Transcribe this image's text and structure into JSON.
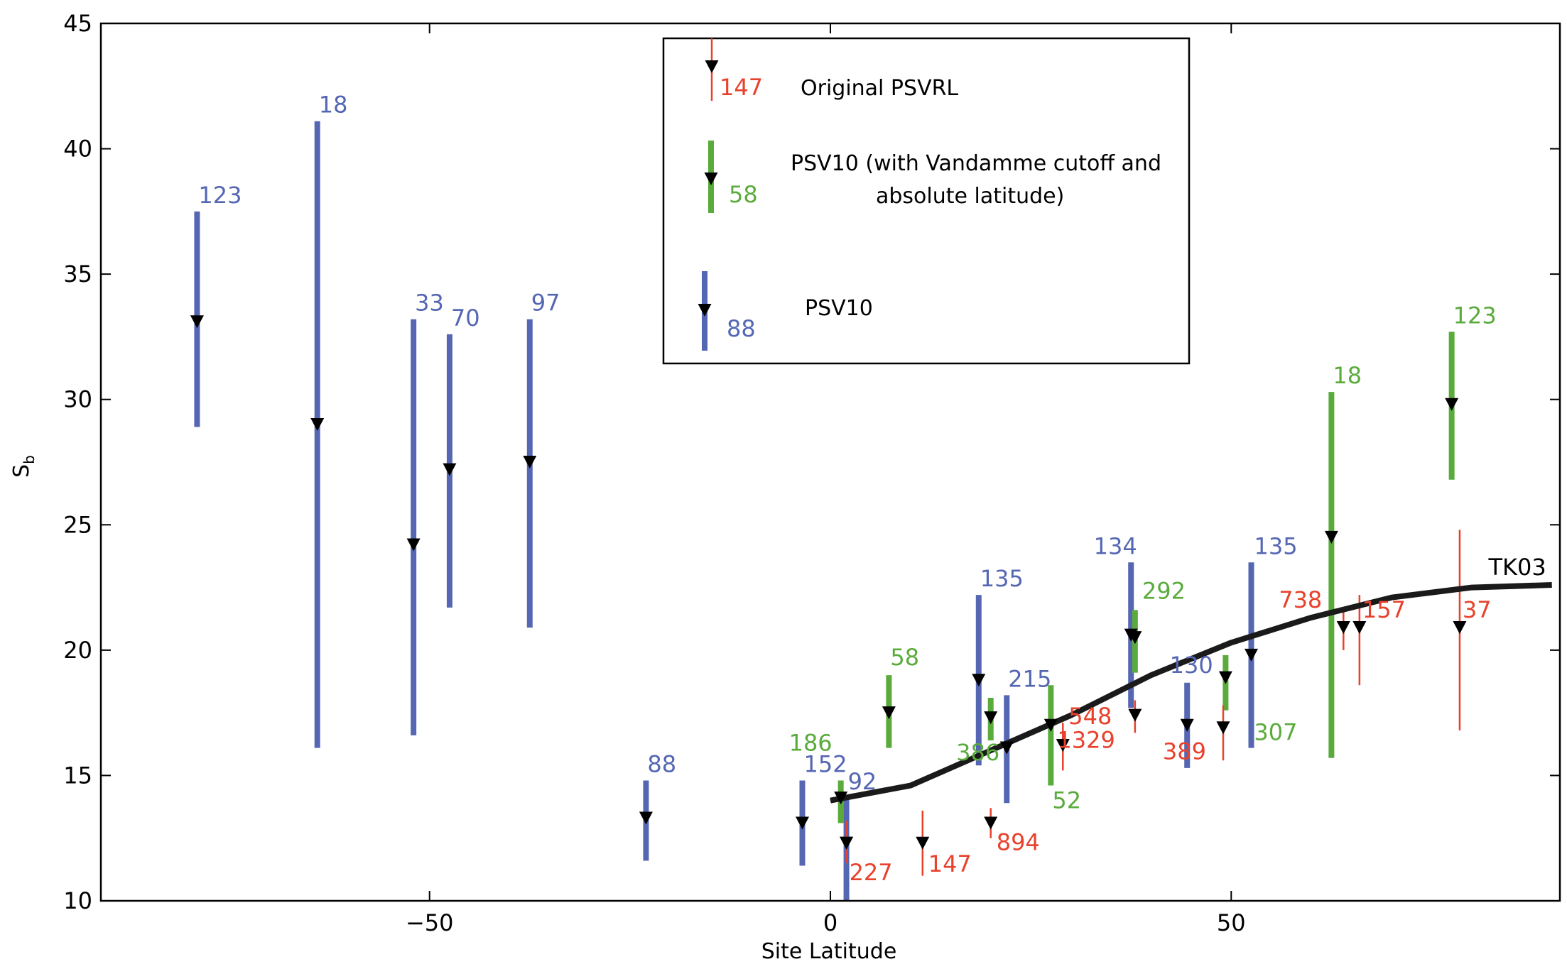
{
  "chart_data": {
    "type": "errorbar",
    "xlabel": "Site Latitude",
    "ylabel": "S",
    "ylabel_sub": "b",
    "xlim": [
      -91,
      91
    ],
    "ylim": [
      10,
      45
    ],
    "xticks": [
      -50,
      0,
      50
    ],
    "xtick_labels": [
      "−50",
      "0",
      "50"
    ],
    "yticks": [
      10,
      15,
      20,
      25,
      30,
      35,
      40,
      45
    ],
    "ytick_labels": [
      "10",
      "15",
      "20",
      "25",
      "30",
      "35",
      "40",
      "45"
    ],
    "grid": false,
    "legend_position": "top-center",
    "colors": {
      "original": "#e8412c",
      "vandamme": "#5aab3c",
      "psv10": "#5566b3",
      "marker": "#000000",
      "curve": "#1a1a1a"
    },
    "legend": [
      {
        "series": "original",
        "label": "Original PSVRL",
        "sample": "147"
      },
      {
        "series": "vandamme",
        "label_lines": [
          "PSV10 (with Vandamme cutoff and",
          "absolute latitude)"
        ],
        "sample": "58"
      },
      {
        "series": "psv10",
        "label": "PSV10",
        "sample": "88"
      }
    ],
    "series": [
      {
        "id": "psv10",
        "points": [
          {
            "x": -79,
            "y": 33.1,
            "low": 28.9,
            "high": 37.5,
            "n": "123"
          },
          {
            "x": -64,
            "y": 29.0,
            "low": 16.1,
            "high": 41.1,
            "n": "18"
          },
          {
            "x": -52,
            "y": 24.2,
            "low": 16.6,
            "high": 33.2,
            "n": "33"
          },
          {
            "x": -47.5,
            "y": 27.2,
            "low": 21.7,
            "high": 32.6,
            "n": "70"
          },
          {
            "x": -37.5,
            "y": 27.5,
            "low": 20.9,
            "high": 33.2,
            "n": "97"
          },
          {
            "x": -23,
            "y": 13.3,
            "low": 11.6,
            "high": 14.8,
            "n": "88"
          },
          {
            "x": -3.5,
            "y": 13.1,
            "low": 11.4,
            "high": 14.8,
            "n": "152"
          },
          {
            "x": 2,
            "y": 12.3,
            "low": 10.0,
            "high": 14.1,
            "n": "92"
          },
          {
            "x": 18.5,
            "y": 18.8,
            "low": 15.4,
            "high": 22.2,
            "n": "135"
          },
          {
            "x": 22,
            "y": 16.1,
            "low": 13.9,
            "high": 18.2,
            "n": "215"
          },
          {
            "x": 37.5,
            "y": 20.6,
            "low": 17.7,
            "high": 23.5,
            "n": "134"
          },
          {
            "x": 44.5,
            "y": 17.0,
            "low": 15.3,
            "high": 18.7,
            "n": "130"
          },
          {
            "x": 52.5,
            "y": 19.8,
            "low": 16.1,
            "high": 23.5,
            "n": "135"
          }
        ]
      },
      {
        "id": "vandamme",
        "points": [
          {
            "x": 1.3,
            "y": 14.1,
            "low": 13.1,
            "high": 14.8,
            "n": "186"
          },
          {
            "x": 7.3,
            "y": 17.5,
            "low": 16.1,
            "high": 19.0,
            "n": "58"
          },
          {
            "x": 20,
            "y": 17.3,
            "low": 16.4,
            "high": 18.1,
            "n": "386"
          },
          {
            "x": 27.5,
            "y": 17.0,
            "low": 14.6,
            "high": 18.6,
            "n": "52"
          },
          {
            "x": 38,
            "y": 20.5,
            "low": 19.1,
            "high": 21.6,
            "n": "292"
          },
          {
            "x": 49.3,
            "y": 18.9,
            "low": 17.6,
            "high": 19.8,
            "n": "307"
          },
          {
            "x": 62.5,
            "y": 24.5,
            "low": 15.7,
            "high": 30.3,
            "n": "18"
          },
          {
            "x": 77.5,
            "y": 29.8,
            "low": 26.8,
            "high": 32.7,
            "n": "123"
          }
        ]
      },
      {
        "id": "original",
        "points": [
          {
            "x": 2,
            "y": 12.3,
            "low": 11.5,
            "high": 13.2,
            "n": "227"
          },
          {
            "x": 11.5,
            "y": 12.3,
            "low": 11.0,
            "high": 13.6,
            "n": "147"
          },
          {
            "x": 20,
            "y": 13.1,
            "low": 12.5,
            "high": 13.7,
            "n": "894"
          },
          {
            "x": 29,
            "y": 16.2,
            "low": 15.2,
            "high": 17.1,
            "n": "548"
          },
          {
            "x": 38,
            "y": 17.4,
            "low": 16.7,
            "high": 18.0,
            "n": "1329"
          },
          {
            "x": 49,
            "y": 16.9,
            "low": 15.6,
            "high": 17.8,
            "n": "389"
          },
          {
            "x": 64,
            "y": 20.9,
            "low": 20.0,
            "high": 21.6,
            "n": "738"
          },
          {
            "x": 66,
            "y": 20.9,
            "low": 18.6,
            "high": 22.2,
            "n": "157"
          },
          {
            "x": 78.5,
            "y": 20.9,
            "low": 16.8,
            "high": 24.8,
            "n": "37"
          }
        ]
      }
    ],
    "curve": {
      "label": "TK03",
      "x": [
        0,
        10,
        20,
        30,
        40,
        50,
        60,
        70,
        80,
        90
      ],
      "y": [
        14.0,
        14.6,
        16.0,
        17.4,
        19.0,
        20.3,
        21.3,
        22.1,
        22.5,
        22.6
      ]
    }
  }
}
